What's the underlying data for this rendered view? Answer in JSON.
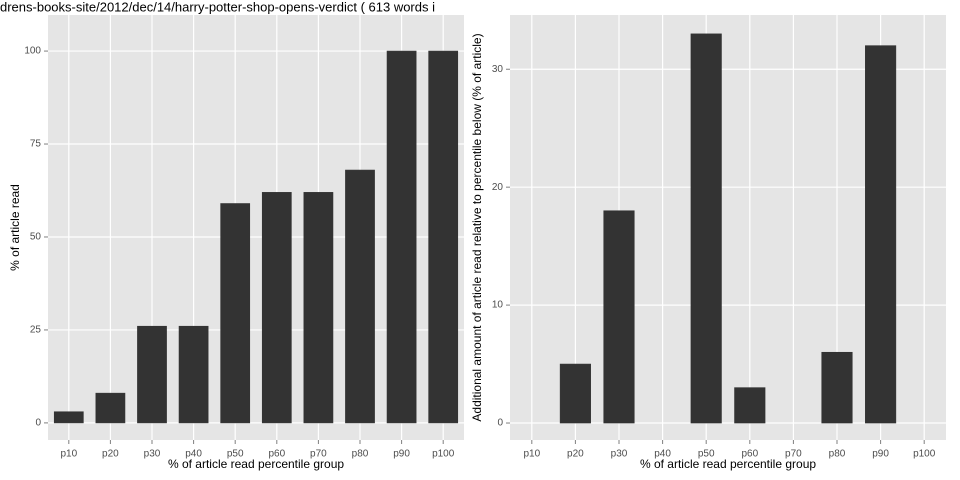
{
  "chart_data": [
    {
      "type": "bar",
      "title": "drens-books-site/2012/dec/14/harry-potter-shop-opens-verdict ( 613 words i",
      "x_label": "% of article read percentile group",
      "y_label": "% of article read",
      "categories": [
        "p10",
        "p20",
        "p30",
        "p40",
        "p50",
        "p60",
        "p70",
        "p80",
        "p90",
        "p100"
      ],
      "values": [
        3,
        8,
        26,
        26,
        59,
        62,
        62,
        68,
        100,
        100
      ],
      "color": "#333333",
      "ylim": [
        -4.6,
        109.7
      ],
      "yticks": [
        0,
        25,
        50,
        75,
        100
      ],
      "grid": true
    },
    {
      "type": "bar",
      "x_label": "% of article read percentile group",
      "y_label": "Additional amount of article read relative to percentile below (% of article)",
      "categories": [
        "p10",
        "p20",
        "p30",
        "p40",
        "p50",
        "p60",
        "p70",
        "p80",
        "p90",
        "p100"
      ],
      "values": [
        0,
        5,
        18,
        0,
        33,
        3,
        0,
        6,
        32,
        0
      ],
      "color": "#333333",
      "ylim": [
        -1.44,
        34.6
      ],
      "yticks": [
        0,
        10,
        20,
        30
      ],
      "grid": true
    }
  ]
}
